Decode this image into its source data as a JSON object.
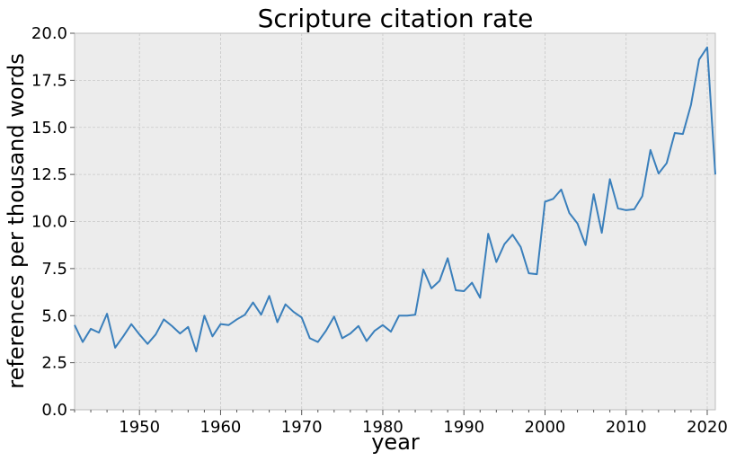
{
  "chart_data": {
    "type": "line",
    "title": "Scripture citation rate",
    "xlabel": "year",
    "ylabel": "references per thousand words",
    "xlim": [
      1942,
      2021
    ],
    "ylim": [
      0,
      20
    ],
    "x_ticks": [
      1950,
      1960,
      1970,
      1980,
      1990,
      2000,
      2010,
      2020
    ],
    "y_ticks": [
      "0.0",
      "2.5",
      "5.0",
      "7.5",
      "10.0",
      "12.5",
      "15.0",
      "17.5",
      "20.0"
    ],
    "grid": true,
    "series": [
      {
        "color": "#3a7fbb",
        "x": [
          1942,
          1943,
          1944,
          1945,
          1946,
          1947,
          1948,
          1949,
          1950,
          1951,
          1952,
          1953,
          1954,
          1955,
          1956,
          1957,
          1958,
          1959,
          1960,
          1961,
          1962,
          1963,
          1964,
          1965,
          1966,
          1967,
          1968,
          1969,
          1970,
          1971,
          1972,
          1973,
          1974,
          1975,
          1976,
          1977,
          1978,
          1979,
          1980,
          1981,
          1982,
          1983,
          1984,
          1985,
          1986,
          1987,
          1988,
          1989,
          1990,
          1991,
          1992,
          1993,
          1994,
          1995,
          1996,
          1997,
          1998,
          1999,
          2000,
          2001,
          2002,
          2003,
          2004,
          2005,
          2006,
          2007,
          2008,
          2009,
          2010,
          2011,
          2012,
          2013,
          2014,
          2015,
          2016,
          2017,
          2018,
          2019,
          2020,
          2021
        ],
        "y": [
          4.5,
          3.6,
          4.3,
          4.1,
          5.1,
          3.3,
          3.9,
          4.55,
          4.0,
          3.5,
          4.0,
          4.8,
          4.45,
          4.05,
          4.4,
          3.1,
          5.0,
          3.9,
          4.55,
          4.5,
          4.8,
          5.05,
          5.7,
          5.05,
          6.05,
          4.65,
          5.6,
          5.2,
          4.9,
          3.8,
          3.6,
          4.2,
          4.95,
          3.8,
          4.05,
          4.45,
          3.65,
          4.2,
          4.5,
          4.15,
          5.0,
          5.0,
          5.05,
          7.45,
          6.45,
          6.85,
          8.05,
          6.35,
          6.3,
          6.75,
          5.95,
          9.35,
          7.85,
          8.8,
          9.3,
          8.65,
          7.25,
          7.2,
          11.05,
          11.2,
          11.7,
          10.45,
          9.9,
          8.75,
          11.45,
          9.4,
          12.25,
          10.7,
          10.6,
          10.65,
          11.35,
          13.8,
          12.55,
          13.1,
          14.7,
          14.65,
          16.2,
          18.6,
          19.25,
          12.5
        ]
      }
    ]
  }
}
